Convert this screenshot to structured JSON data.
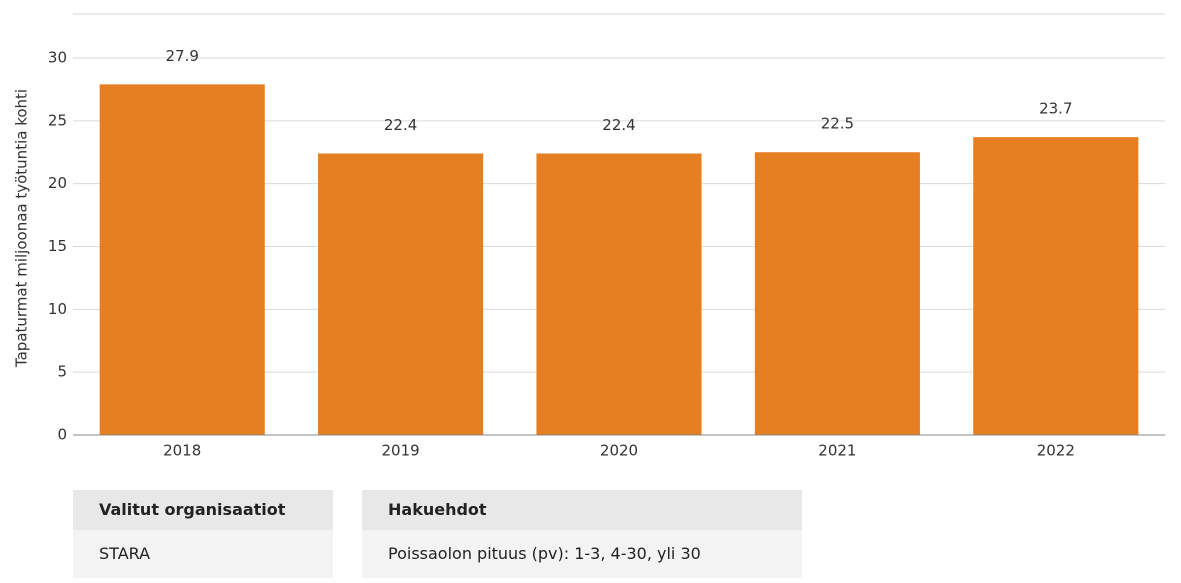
{
  "chart_data": {
    "type": "bar",
    "y_label": "Tapaturmat miljoonaa työtuntia kohti",
    "categories": [
      "2018",
      "2019",
      "2020",
      "2021",
      "2022"
    ],
    "values": [
      27.9,
      22.4,
      22.4,
      22.5,
      23.7
    ],
    "color": "#e67e22",
    "ylim": [
      0,
      33.5
    ],
    "yticks": [
      0,
      5,
      10,
      15,
      20,
      25,
      30
    ],
    "grid": true
  },
  "filters": [
    {
      "header": "Valitut organisaatiot",
      "value": "STARA"
    },
    {
      "header": "Hakuehdot",
      "value": "Poissaolon pituus (pv): 1-3, 4-30, yli 30"
    }
  ]
}
